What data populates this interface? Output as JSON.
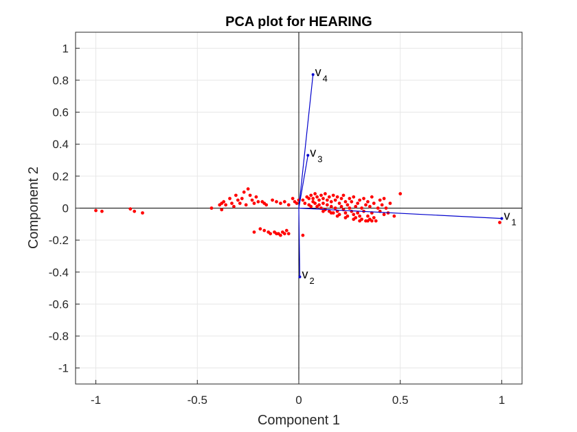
{
  "chart_data": {
    "type": "scatter",
    "title": "PCA plot for HEARING",
    "xlabel": "Component 1",
    "ylabel": "Component 2",
    "xlim": [
      -1.1,
      1.1
    ],
    "ylim": [
      -1.1,
      1.1
    ],
    "grid": true,
    "x_ticks": [
      -1,
      -0.5,
      0,
      0.5,
      1
    ],
    "x_tick_labels": [
      "-1",
      "-0.5",
      "0",
      "0.5",
      "1"
    ],
    "y_ticks": [
      -1,
      -0.8,
      -0.6,
      -0.4,
      -0.2,
      0,
      0.2,
      0.4,
      0.6,
      0.8,
      1
    ],
    "y_tick_labels": [
      "-1",
      "-0.8",
      "-0.6",
      "-0.4",
      "-0.2",
      "0",
      "0.2",
      "0.4",
      "0.6",
      "0.8",
      "1"
    ],
    "colors": {
      "points": "#ff0000",
      "vectors": "#0000cc",
      "axes_lines": "#000000",
      "grid": "#e6e6e6"
    },
    "vectors": [
      {
        "label": "v",
        "sub": "1",
        "x": 1.0,
        "y": -0.065
      },
      {
        "label": "v",
        "sub": "2",
        "x": 0.005,
        "y": -0.43
      },
      {
        "label": "v",
        "sub": "3",
        "x": 0.045,
        "y": 0.33
      },
      {
        "label": "v",
        "sub": "4",
        "x": 0.07,
        "y": 0.835
      }
    ],
    "points": [
      [
        -1.0,
        -0.015
      ],
      [
        -0.97,
        -0.02
      ],
      [
        -0.83,
        -0.005
      ],
      [
        -0.81,
        -0.02
      ],
      [
        -0.77,
        -0.03
      ],
      [
        -0.43,
        0.0
      ],
      [
        -0.39,
        0.02
      ],
      [
        -0.38,
        0.03
      ],
      [
        -0.38,
        -0.01
      ],
      [
        -0.37,
        0.04
      ],
      [
        -0.36,
        0.02
      ],
      [
        -0.34,
        0.06
      ],
      [
        -0.33,
        0.03
      ],
      [
        -0.32,
        0.01
      ],
      [
        -0.31,
        0.08
      ],
      [
        -0.3,
        0.05
      ],
      [
        -0.29,
        0.03
      ],
      [
        -0.28,
        0.06
      ],
      [
        -0.27,
        0.1
      ],
      [
        -0.26,
        0.02
      ],
      [
        -0.25,
        0.12
      ],
      [
        -0.24,
        0.08
      ],
      [
        -0.23,
        0.05
      ],
      [
        -0.22,
        0.03
      ],
      [
        -0.21,
        0.07
      ],
      [
        -0.2,
        0.04
      ],
      [
        -0.18,
        0.04
      ],
      [
        -0.17,
        0.03
      ],
      [
        -0.16,
        0.02
      ],
      [
        -0.13,
        0.05
      ],
      [
        -0.11,
        0.04
      ],
      [
        -0.09,
        0.03
      ],
      [
        -0.07,
        0.04
      ],
      [
        -0.05,
        0.02
      ],
      [
        -0.03,
        0.06
      ],
      [
        -0.02,
        0.04
      ],
      [
        -0.01,
        0.03
      ],
      [
        -0.22,
        -0.15
      ],
      [
        -0.19,
        -0.13
      ],
      [
        -0.17,
        -0.14
      ],
      [
        -0.15,
        -0.15
      ],
      [
        -0.14,
        -0.16
      ],
      [
        -0.12,
        -0.15
      ],
      [
        -0.11,
        -0.16
      ],
      [
        -0.1,
        -0.16
      ],
      [
        -0.09,
        -0.17
      ],
      [
        -0.08,
        -0.15
      ],
      [
        -0.07,
        -0.16
      ],
      [
        -0.06,
        -0.14
      ],
      [
        -0.05,
        -0.16
      ],
      [
        0.02,
        -0.17
      ],
      [
        0.02,
        0.05
      ],
      [
        0.03,
        0.03
      ],
      [
        0.04,
        0.07
      ],
      [
        0.05,
        0.02
      ],
      [
        0.05,
        0.06
      ],
      [
        0.06,
        0.01
      ],
      [
        0.06,
        0.08
      ],
      [
        0.07,
        0.04
      ],
      [
        0.07,
        0.06
      ],
      [
        0.08,
        0.03
      ],
      [
        0.08,
        0.09
      ],
      [
        0.09,
        0.07
      ],
      [
        0.09,
        0.01
      ],
      [
        0.1,
        0.05
      ],
      [
        0.1,
        0.02
      ],
      [
        0.11,
        0.08
      ],
      [
        0.11,
        0.0
      ],
      [
        0.12,
        0.06
      ],
      [
        0.12,
        0.03
      ],
      [
        0.13,
        0.09
      ],
      [
        0.13,
        -0.01
      ],
      [
        0.14,
        0.05
      ],
      [
        0.14,
        0.02
      ],
      [
        0.15,
        0.07
      ],
      [
        0.15,
        -0.02
      ],
      [
        0.16,
        0.04
      ],
      [
        0.16,
        0.01
      ],
      [
        0.17,
        0.08
      ],
      [
        0.17,
        -0.03
      ],
      [
        0.18,
        0.05
      ],
      [
        0.18,
        0.0
      ],
      [
        0.19,
        0.07
      ],
      [
        0.19,
        -0.02
      ],
      [
        0.2,
        0.03
      ],
      [
        0.2,
        -0.04
      ],
      [
        0.21,
        0.06
      ],
      [
        0.21,
        0.01
      ],
      [
        0.22,
        -0.01
      ],
      [
        0.22,
        0.08
      ],
      [
        0.23,
        0.04
      ],
      [
        0.23,
        -0.03
      ],
      [
        0.24,
        0.02
      ],
      [
        0.24,
        -0.05
      ],
      [
        0.25,
        0.06
      ],
      [
        0.25,
        0.0
      ],
      [
        0.26,
        -0.02
      ],
      [
        0.26,
        0.04
      ],
      [
        0.27,
        -0.04
      ],
      [
        0.27,
        0.07
      ],
      [
        0.28,
        0.01
      ],
      [
        0.28,
        -0.06
      ],
      [
        0.29,
        0.03
      ],
      [
        0.29,
        -0.03
      ],
      [
        0.3,
        0.05
      ],
      [
        0.3,
        -0.05
      ],
      [
        0.31,
        0.0
      ],
      [
        0.31,
        -0.07
      ],
      [
        0.32,
        0.06
      ],
      [
        0.32,
        -0.02
      ],
      [
        0.33,
        -0.08
      ],
      [
        0.33,
        0.02
      ],
      [
        0.34,
        -0.05
      ],
      [
        0.34,
        0.04
      ],
      [
        0.35,
        -0.07
      ],
      [
        0.35,
        0.01
      ],
      [
        0.36,
        -0.03
      ],
      [
        0.36,
        0.07
      ],
      [
        0.37,
        -0.06
      ],
      [
        0.37,
        0.03
      ],
      [
        0.38,
        -0.08
      ],
      [
        0.39,
        0.0
      ],
      [
        0.4,
        0.05
      ],
      [
        0.4,
        -0.02
      ],
      [
        0.41,
        0.02
      ],
      [
        0.42,
        -0.04
      ],
      [
        0.42,
        0.06
      ],
      [
        0.43,
        0.0
      ],
      [
        0.44,
        -0.03
      ],
      [
        0.45,
        0.03
      ],
      [
        0.47,
        -0.05
      ],
      [
        0.5,
        0.09
      ],
      [
        0.19,
        -0.05
      ],
      [
        0.23,
        -0.06
      ],
      [
        0.27,
        -0.07
      ],
      [
        0.3,
        -0.08
      ],
      [
        0.34,
        -0.08
      ],
      [
        0.36,
        -0.08
      ],
      [
        0.12,
        -0.02
      ],
      [
        0.16,
        -0.03
      ],
      [
        0.0,
        0.05
      ],
      [
        0.99,
        -0.09
      ]
    ]
  }
}
